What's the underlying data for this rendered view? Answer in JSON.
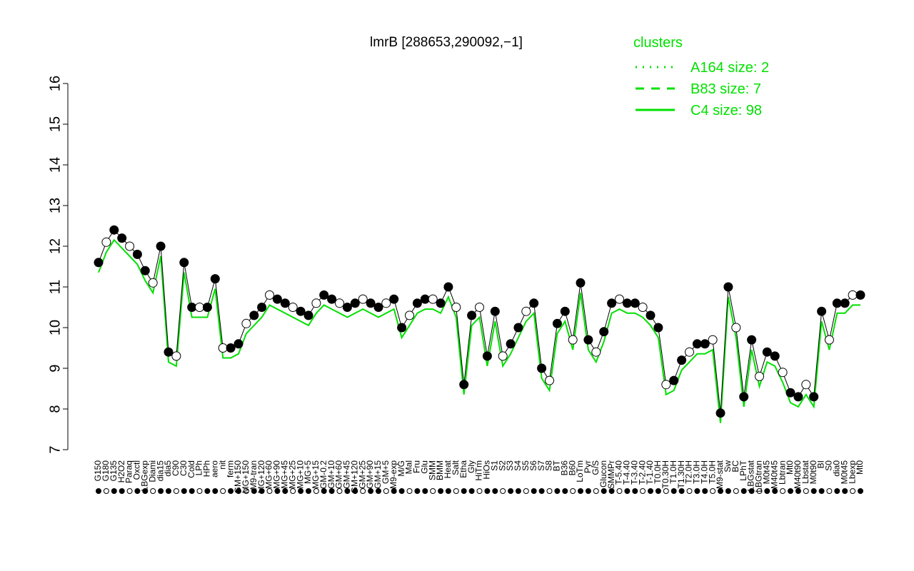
{
  "chart_data": {
    "type": "line",
    "title": "lmrB [288653,290092,−1]",
    "xlabel": "",
    "ylabel": "",
    "ylim": [
      7,
      16
    ],
    "yticks": [
      7,
      8,
      9,
      10,
      11,
      12,
      13,
      14,
      15,
      16
    ],
    "grid": false,
    "legend": {
      "title": "clusters",
      "placement": "top-right",
      "color": "#00e000",
      "entries": [
        {
          "label": "A164 size: 2",
          "style": "dotted"
        },
        {
          "label": "B83 size: 7",
          "style": "dashed"
        },
        {
          "label": "C4 size: 98",
          "style": "solid"
        }
      ]
    },
    "colors": {
      "line": "#00e000",
      "point": "#000000",
      "open_fill": "#ffffff"
    },
    "xtick_labels": [
      "G150",
      "G180",
      "G135",
      "H2O2",
      "Paraq",
      "Oxctl",
      "LBGexp",
      "Diami",
      "dia15",
      "dia5",
      "C90",
      "C30",
      "Cold",
      "LPh",
      "HPh",
      "aero",
      "nit",
      "ferm",
      "GM+150",
      "MG+150",
      "M9-tran",
      "MG+120",
      "MG+60",
      "MG+90",
      "MG+45",
      "MG+25",
      "MG+10",
      "MG+5",
      "MG+15",
      "GM-0.2",
      "GM+10",
      "GM+60",
      "GM+45",
      "GM+120",
      "GM+25",
      "GM+90",
      "GM+15",
      "GM+5",
      "M9-exp",
      "M/G",
      "Mal",
      "Fru",
      "Glu",
      "SMM",
      "BMM",
      "Heat",
      "Salt",
      "Etha",
      "Gly",
      "HiTm",
      "HiOs",
      "S1",
      "S2",
      "S3",
      "S4",
      "S5",
      "S6",
      "S7",
      "S8",
      "BT",
      "B36",
      "B60",
      "LoTm",
      "Pyr",
      "G/S",
      "Glucon",
      "SMMPr",
      "T-5.40",
      "T-4.40",
      "T-3.40",
      "T-2.40",
      "T-1.40",
      "T0.0H",
      "T0.30H",
      "T1.0H",
      "T1.30H",
      "T2.0H",
      "T3.0H",
      "T4.0H",
      "T5.0H",
      "M9-stat",
      "Sw",
      "BC",
      "LPhT",
      "LBGstat",
      "LBGtran",
      "M0t45",
      "M40t45",
      "Lbtran",
      "Mt0",
      "M40t90",
      "Lbstat",
      "M0t90",
      "BI",
      "S0",
      "dia0",
      "M0t45",
      "Lbexp",
      "Mt0"
    ],
    "series": [
      {
        "name": "",
        "values": [
          11.6,
          12.1,
          12.4,
          12.2,
          12.0,
          11.8,
          11.4,
          11.1,
          12.0,
          9.4,
          9.3,
          11.6,
          10.5,
          10.5,
          10.5,
          11.2,
          9.5,
          9.5,
          9.6,
          10.1,
          10.3,
          10.5,
          10.8,
          10.7,
          10.6,
          10.5,
          10.4,
          10.3,
          10.6,
          10.8,
          10.7,
          10.6,
          10.5,
          10.6,
          10.7,
          10.6,
          10.5,
          10.6,
          10.7,
          10.0,
          10.3,
          10.6,
          10.7,
          10.7,
          10.6,
          11.0,
          10.5,
          8.6,
          10.3,
          10.5,
          9.3,
          10.4,
          9.3,
          9.6,
          10.0,
          10.4,
          10.6,
          9.0,
          8.7,
          10.1,
          10.4,
          9.7,
          11.1,
          9.7,
          9.4,
          9.9,
          10.6,
          10.7,
          10.6,
          10.6,
          10.5,
          10.3,
          10.0,
          8.6,
          8.7,
          9.2,
          9.4,
          9.6,
          9.6,
          9.7,
          7.9,
          11.0,
          10.0,
          8.3,
          9.7,
          8.8,
          9.4,
          9.3,
          8.9,
          8.4,
          8.3,
          8.6,
          8.3,
          10.4,
          9.7,
          10.6,
          10.6,
          10.8,
          10.8
        ]
      }
    ]
  }
}
